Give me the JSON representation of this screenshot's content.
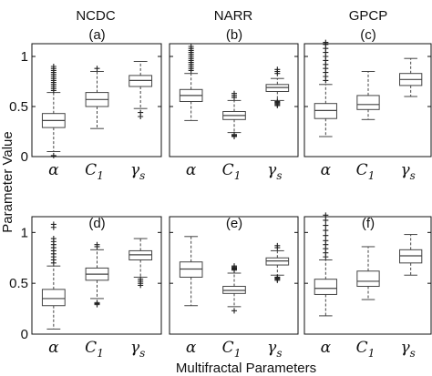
{
  "figure": {
    "ylabel": "Parameter Value",
    "xlabel": "Multifractal Parameters"
  },
  "columns": [
    "NCDC",
    "NARR",
    "GPCP"
  ],
  "colors": {
    "ink": "#111111",
    "box": "#444444",
    "outlier": "#222222"
  },
  "chart_data": [
    {
      "type": "box",
      "dataset": "NCDC",
      "panel_label": "(a)",
      "ylim": [
        0,
        1.2
      ],
      "yticks": [
        0,
        0.5,
        1
      ],
      "categories": [
        {
          "base": "α",
          "sub": ""
        },
        {
          "base": "C",
          "sub": "1"
        },
        {
          "base": "γ",
          "sub": "s"
        }
      ],
      "boxes": [
        {
          "whisker_low": 0.05,
          "q1": 0.29,
          "median": 0.36,
          "q3": 0.43,
          "whisker_high": 0.64,
          "outliers": [
            0.01,
            0.66,
            0.68,
            0.7,
            0.72,
            0.74,
            0.76,
            0.78,
            0.8,
            0.82,
            0.84,
            0.86,
            0.88,
            0.9
          ]
        },
        {
          "whisker_low": 0.28,
          "q1": 0.5,
          "median": 0.57,
          "q3": 0.64,
          "whisker_high": 0.85,
          "outliers": [
            0.88
          ]
        },
        {
          "whisker_low": 0.48,
          "q1": 0.7,
          "median": 0.76,
          "q3": 0.81,
          "whisker_high": 0.95,
          "outliers": [
            0.4,
            0.44
          ]
        }
      ]
    },
    {
      "type": "box",
      "dataset": "NARR",
      "panel_label": "(b)",
      "ylim": [
        0,
        1.2
      ],
      "yticks": [
        0,
        0.5,
        1
      ],
      "categories": [
        {
          "base": "α",
          "sub": ""
        },
        {
          "base": "C",
          "sub": "1"
        },
        {
          "base": "γ",
          "sub": "s"
        }
      ],
      "boxes": [
        {
          "whisker_low": 0.36,
          "q1": 0.55,
          "median": 0.61,
          "q3": 0.67,
          "whisker_high": 0.83,
          "outliers": [
            0.86,
            0.88,
            0.9,
            0.92,
            0.94,
            0.96,
            0.98,
            1.0,
            1.02,
            1.04,
            1.06,
            1.08,
            1.1
          ]
        },
        {
          "whisker_low": 0.24,
          "q1": 0.37,
          "median": 0.41,
          "q3": 0.45,
          "whisker_high": 0.56,
          "outliers": [
            0.2,
            0.21,
            0.22,
            0.59,
            0.61,
            0.63
          ]
        },
        {
          "whisker_low": 0.56,
          "q1": 0.65,
          "median": 0.69,
          "q3": 0.72,
          "whisker_high": 0.78,
          "outliers": [
            0.51,
            0.52,
            0.53,
            0.54,
            0.55,
            0.83,
            0.85,
            0.87
          ]
        }
      ]
    },
    {
      "type": "box",
      "dataset": "GPCP",
      "panel_label": "(c)",
      "ylim": [
        0,
        1.2
      ],
      "yticks": [
        0,
        0.5,
        1
      ],
      "categories": [
        {
          "base": "α",
          "sub": ""
        },
        {
          "base": "C",
          "sub": "1"
        },
        {
          "base": "γ",
          "sub": "s"
        }
      ],
      "boxes": [
        {
          "whisker_low": 0.2,
          "q1": 0.38,
          "median": 0.46,
          "q3": 0.53,
          "whisker_high": 0.72,
          "outliers": [
            0.76,
            0.8,
            0.84,
            0.88,
            0.92,
            0.96,
            1.0,
            1.04,
            1.08,
            1.12,
            1.14
          ]
        },
        {
          "whisker_low": 0.37,
          "q1": 0.47,
          "median": 0.52,
          "q3": 0.61,
          "whisker_high": 0.85,
          "outliers": []
        },
        {
          "whisker_low": 0.6,
          "q1": 0.71,
          "median": 0.77,
          "q3": 0.83,
          "whisker_high": 0.98,
          "outliers": []
        }
      ]
    },
    {
      "type": "box",
      "dataset": "NCDC",
      "panel_label": "(d)",
      "ylim": [
        0,
        1.2
      ],
      "yticks": [
        0,
        0.5,
        1
      ],
      "categories": [
        {
          "base": "α",
          "sub": ""
        },
        {
          "base": "C",
          "sub": "1"
        },
        {
          "base": "γ",
          "sub": "s"
        }
      ],
      "boxes": [
        {
          "whisker_low": 0.05,
          "q1": 0.28,
          "median": 0.35,
          "q3": 0.44,
          "whisker_high": 0.67,
          "outliers": [
            0.7,
            0.73,
            0.76,
            0.79,
            0.82,
            0.85,
            0.88,
            0.91,
            0.94,
            1.05,
            1.08
          ]
        },
        {
          "whisker_low": 0.35,
          "q1": 0.53,
          "median": 0.59,
          "q3": 0.65,
          "whisker_high": 0.83,
          "outliers": [
            0.29,
            0.3,
            0.31,
            0.86,
            0.88
          ]
        },
        {
          "whisker_low": 0.56,
          "q1": 0.73,
          "median": 0.78,
          "q3": 0.82,
          "whisker_high": 0.94,
          "outliers": [
            0.48,
            0.5,
            0.52,
            0.54
          ]
        }
      ]
    },
    {
      "type": "box",
      "dataset": "NARR",
      "panel_label": "(e)",
      "ylim": [
        0,
        1.2
      ],
      "yticks": [
        0,
        0.5,
        1
      ],
      "categories": [
        {
          "base": "α",
          "sub": ""
        },
        {
          "base": "C",
          "sub": "1"
        },
        {
          "base": "γ",
          "sub": "s"
        }
      ],
      "boxes": [
        {
          "whisker_low": 0.28,
          "q1": 0.56,
          "median": 0.64,
          "q3": 0.71,
          "whisker_high": 0.96,
          "outliers": []
        },
        {
          "whisker_low": 0.27,
          "q1": 0.4,
          "median": 0.43,
          "q3": 0.47,
          "whisker_high": 0.6,
          "outliers": [
            0.23,
            0.63,
            0.64,
            0.65,
            0.66,
            0.67
          ]
        },
        {
          "whisker_low": 0.58,
          "q1": 0.68,
          "median": 0.72,
          "q3": 0.75,
          "whisker_high": 0.82,
          "outliers": [
            0.53,
            0.54,
            0.55,
            0.56,
            0.85,
            0.87
          ]
        }
      ]
    },
    {
      "type": "box",
      "dataset": "GPCP",
      "panel_label": "(f)",
      "ylim": [
        0,
        1.2
      ],
      "yticks": [
        0,
        0.5,
        1
      ],
      "categories": [
        {
          "base": "α",
          "sub": ""
        },
        {
          "base": "C",
          "sub": "1"
        },
        {
          "base": "γ",
          "sub": "s"
        }
      ],
      "boxes": [
        {
          "whisker_low": 0.18,
          "q1": 0.39,
          "median": 0.45,
          "q3": 0.54,
          "whisker_high": 0.73,
          "outliers": [
            0.76,
            0.8,
            0.84,
            0.88,
            0.92,
            0.97,
            1.02,
            1.07,
            1.12,
            1.17
          ]
        },
        {
          "whisker_low": 0.34,
          "q1": 0.47,
          "median": 0.52,
          "q3": 0.62,
          "whisker_high": 0.86,
          "outliers": []
        },
        {
          "whisker_low": 0.58,
          "q1": 0.7,
          "median": 0.77,
          "q3": 0.83,
          "whisker_high": 0.98,
          "outliers": []
        }
      ]
    }
  ]
}
